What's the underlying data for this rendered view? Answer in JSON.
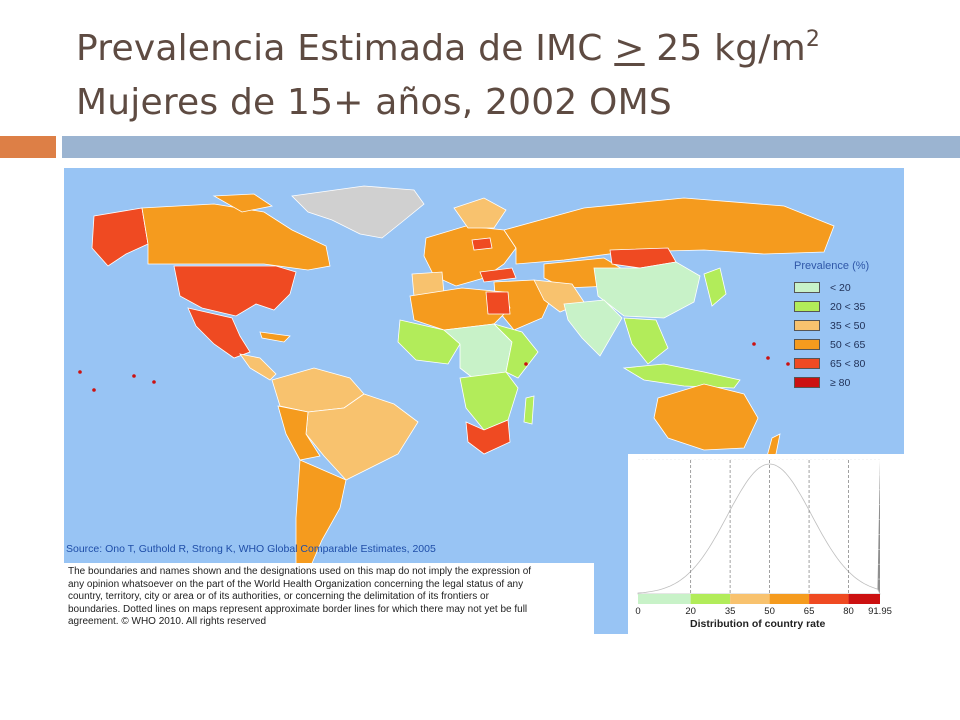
{
  "slide": {
    "title_part1": "Prevalencia Estimada de IMC ",
    "title_ge_symbol": ">",
    "title_part2": " 25 kg/m",
    "title_sup": "2",
    "title_line2": "Mujeres de 15+ años, 2002 OMS"
  },
  "colors": {
    "ocean": "#98c4f4",
    "no_data": "#d0d0d0",
    "title_text": "#5e4b42",
    "accent_orange": "#dd7f46",
    "accent_blue": "#9bb4d1"
  },
  "map": {
    "legend": {
      "title": "Prevalence (%)",
      "items": [
        {
          "label": "< 20",
          "color": "#c8f2c8"
        },
        {
          "label": "20 < 35",
          "color": "#b2ec5a"
        },
        {
          "label": "35 < 50",
          "color": "#f8c26e"
        },
        {
          "label": "50 < 65",
          "color": "#f59b1e"
        },
        {
          "label": "65 < 80",
          "color": "#ef4a22"
        },
        {
          "label": "≥ 80",
          "color": "#cc1111"
        }
      ]
    },
    "source": "Source: Ono T, Guthold R, Strong K, WHO Global Comparable Estimates, 2005",
    "disclaimer": [
      "The boundaries and names shown and the designations used on this map do not imply the expression of",
      "any opinion whatsoever on the part of the World Health Organization concerning the legal status of any",
      "country, territory, city or area or of its authorities, or concerning the delimitation of its frontiers or",
      "boundaries. Dotted lines on maps represent approximate border lines for which there may not yet be full",
      "agreement. © WHO 2010. All rights reserved"
    ]
  },
  "chart_data": {
    "type": "area",
    "title": "",
    "xlabel": "Distribution of country rate",
    "ylabel": "",
    "x_tick_labels": [
      "0",
      "20",
      "35",
      "50",
      "65",
      "80",
      "91.95"
    ],
    "xlim": [
      0,
      91.95
    ],
    "curve": {
      "shape": "bell",
      "peak_x": 50
    },
    "color_bins": [
      {
        "from": 0,
        "to": 20,
        "color": "#c8f2c8"
      },
      {
        "from": 20,
        "to": 35,
        "color": "#b2ec5a"
      },
      {
        "from": 35,
        "to": 50,
        "color": "#f8c26e"
      },
      {
        "from": 50,
        "to": 65,
        "color": "#f59b1e"
      },
      {
        "from": 65,
        "to": 80,
        "color": "#ef4a22"
      },
      {
        "from": 80,
        "to": 91.95,
        "color": "#cc1111"
      }
    ],
    "grid": true
  }
}
